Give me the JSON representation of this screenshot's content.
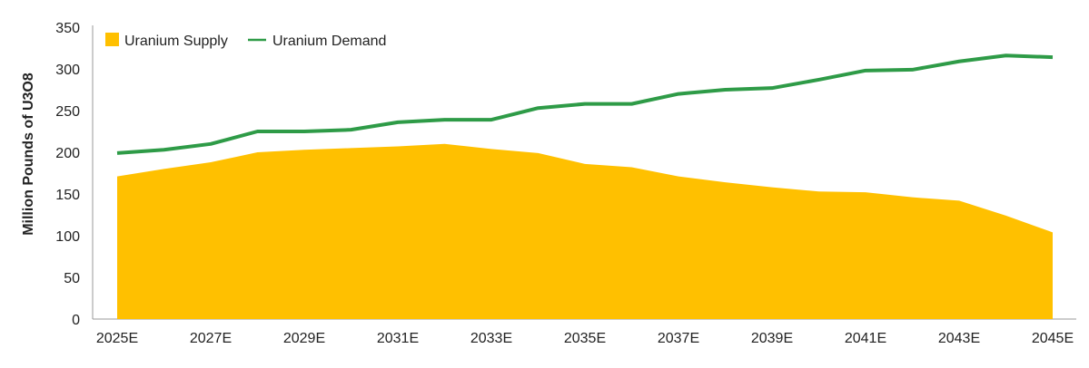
{
  "chart_data": {
    "type": "area+line",
    "title": "",
    "xlabel": "",
    "ylabel": "Million Pounds of U3O8",
    "ylim": [
      0,
      350
    ],
    "yticks": [
      0,
      50,
      100,
      150,
      200,
      250,
      300,
      350
    ],
    "x": [
      "2025E",
      "2026E",
      "2027E",
      "2028E",
      "2029E",
      "2030E",
      "2031E",
      "2032E",
      "2033E",
      "2034E",
      "2035E",
      "2036E",
      "2037E",
      "2038E",
      "2039E",
      "2040E",
      "2041E",
      "2042E",
      "2043E",
      "2044E",
      "2045E"
    ],
    "xtick_labels": [
      "2025E",
      "2027E",
      "2029E",
      "2031E",
      "2033E",
      "2035E",
      "2037E",
      "2039E",
      "2041E",
      "2043E",
      "2045E"
    ],
    "grid": false,
    "legend_placement": "top-left",
    "series": [
      {
        "name": "Uranium Supply",
        "type": "area",
        "color": "#FFC000",
        "values": [
          171,
          180,
          188,
          200,
          203,
          205,
          207,
          210,
          204,
          199,
          186,
          182,
          171,
          164,
          158,
          153,
          152,
          146,
          142,
          124,
          104
        ]
      },
      {
        "name": "Uranium Demand",
        "type": "line",
        "color": "#2E9B47",
        "values": [
          199,
          203,
          210,
          225,
          225,
          227,
          236,
          239,
          239,
          253,
          258,
          258,
          270,
          275,
          277,
          287,
          298,
          299,
          309,
          316,
          314
        ]
      }
    ]
  }
}
